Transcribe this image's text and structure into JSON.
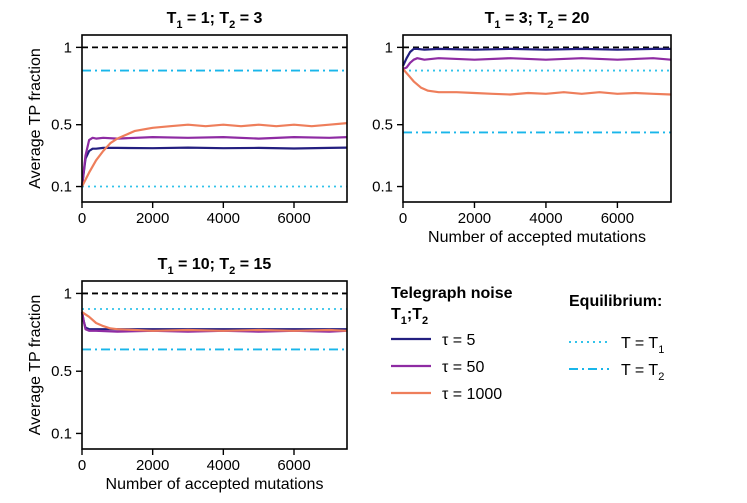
{
  "chart_data": {
    "type": "line",
    "colors": {
      "tau5": "#231f80",
      "tau50": "#8e2ba3",
      "tau1000": "#ee7e5b",
      "eqT1": "#32c3ea",
      "eqT2": "#19b6ea",
      "reference": "#000000"
    },
    "x_max": 7500,
    "ylim": [
      0,
      1.08
    ],
    "x_ticks": [
      0,
      2000,
      4000,
      6000
    ],
    "x_tick_labels": [
      "0",
      "2000",
      "4000",
      "6000"
    ],
    "y_ticks": [
      0.1,
      0.5,
      1
    ],
    "y_tick_labels": [
      "0.1",
      "0.5",
      "1"
    ],
    "panels": [
      {
        "title_parts": [
          "T",
          "1",
          " = 1; T",
          "2",
          " = 3"
        ],
        "ylabel": "Average TP fraction",
        "xlabel": "",
        "reference_line": 1.0,
        "eq_T1": 0.1,
        "eq_T2": 0.85,
        "series": [
          {
            "name": "τ = 5",
            "x": [
              0,
              100,
              200,
              300,
              400,
              600,
              1000,
              2000,
              3000,
              4000,
              5000,
              6000,
              7000,
              7500
            ],
            "values": [
              0.1,
              0.28,
              0.33,
              0.345,
              0.345,
              0.35,
              0.35,
              0.348,
              0.352,
              0.348,
              0.35,
              0.346,
              0.35,
              0.352
            ]
          },
          {
            "name": "τ = 50",
            "x": [
              0,
              100,
              200,
              300,
              400,
              600,
              1000,
              2000,
              3000,
              4000,
              5000,
              6000,
              7000,
              7500
            ],
            "values": [
              0.1,
              0.3,
              0.4,
              0.415,
              0.41,
              0.415,
              0.41,
              0.42,
              0.415,
              0.42,
              0.41,
              0.42,
              0.415,
              0.42
            ]
          },
          {
            "name": "τ = 1000",
            "x": [
              0,
              200,
              400,
              600,
              800,
              1000,
              1200,
              1500,
              2000,
              2500,
              3000,
              3500,
              4000,
              4500,
              5000,
              5500,
              6000,
              6500,
              7000,
              7500
            ],
            "values": [
              0.1,
              0.19,
              0.27,
              0.33,
              0.38,
              0.41,
              0.43,
              0.46,
              0.48,
              0.49,
              0.5,
              0.49,
              0.5,
              0.49,
              0.5,
              0.49,
              0.5,
              0.49,
              0.5,
              0.51
            ]
          }
        ]
      },
      {
        "title_parts": [
          "T",
          "1",
          " = 3; T",
          "2",
          " = 20"
        ],
        "ylabel": "",
        "xlabel": "Number of accepted mutations",
        "reference_line": 1.0,
        "eq_T1": 0.85,
        "eq_T2": 0.45,
        "series": [
          {
            "name": "τ = 5",
            "x": [
              0,
              100,
              200,
              300,
              400,
              600,
              1000,
              2000,
              3000,
              4000,
              5000,
              6000,
              7000,
              7500
            ],
            "values": [
              0.88,
              0.93,
              0.97,
              0.99,
              0.99,
              0.985,
              0.99,
              0.985,
              0.99,
              0.985,
              0.99,
              0.985,
              0.99,
              0.99
            ]
          },
          {
            "name": "τ = 50",
            "x": [
              0,
              100,
              200,
              300,
              400,
              600,
              1000,
              2000,
              3000,
              4000,
              5000,
              6000,
              7000,
              7500
            ],
            "values": [
              0.86,
              0.87,
              0.9,
              0.92,
              0.93,
              0.92,
              0.93,
              0.92,
              0.93,
              0.92,
              0.93,
              0.92,
              0.93,
              0.92
            ]
          },
          {
            "name": "τ = 1000",
            "x": [
              0,
              150,
              300,
              500,
              700,
              1000,
              1500,
              2000,
              2500,
              3000,
              3500,
              4000,
              4500,
              5000,
              5500,
              6000,
              6500,
              7000,
              7500
            ],
            "values": [
              0.86,
              0.82,
              0.78,
              0.74,
              0.72,
              0.71,
              0.71,
              0.705,
              0.7,
              0.695,
              0.705,
              0.7,
              0.71,
              0.7,
              0.71,
              0.7,
              0.705,
              0.7,
              0.695
            ]
          }
        ]
      },
      {
        "title_parts": [
          "T",
          "1",
          " = 10; T",
          "2",
          " = 15"
        ],
        "ylabel": "Average TP fraction",
        "xlabel": "Number of accepted mutations",
        "reference_line": 1.0,
        "eq_T1": 0.9,
        "eq_T2": 0.64,
        "series": [
          {
            "name": "τ = 5",
            "x": [
              0,
              50,
              100,
              200,
              400,
              1000,
              2000,
              3000,
              4000,
              5000,
              6000,
              7000,
              7500
            ],
            "values": [
              0.88,
              0.82,
              0.78,
              0.77,
              0.77,
              0.77,
              0.77,
              0.77,
              0.77,
              0.77,
              0.77,
              0.77,
              0.77
            ]
          },
          {
            "name": "τ = 50",
            "x": [
              0,
              50,
              100,
              200,
              400,
              1000,
              2000,
              3000,
              4000,
              5000,
              6000,
              7000,
              7500
            ],
            "values": [
              0.88,
              0.82,
              0.77,
              0.76,
              0.76,
              0.755,
              0.76,
              0.755,
              0.76,
              0.755,
              0.76,
              0.755,
              0.76
            ]
          },
          {
            "name": "τ = 1000",
            "x": [
              0,
              200,
              400,
              600,
              800,
              1000,
              1500,
              2000,
              3000,
              4000,
              5000,
              6000,
              7000,
              7500
            ],
            "values": [
              0.88,
              0.85,
              0.81,
              0.79,
              0.775,
              0.77,
              0.765,
              0.76,
              0.765,
              0.76,
              0.765,
              0.76,
              0.765,
              0.76
            ]
          }
        ]
      }
    ],
    "legend": {
      "noise_title_line1": "Telegraph noise",
      "noise_title_line2_parts": [
        "T",
        "1",
        ";T",
        "2"
      ],
      "noise_items": [
        "τ = 5",
        "τ = 50",
        "τ = 1000"
      ],
      "eq_title": "Equilibrium:",
      "eq_items": [
        {
          "label": "T = T",
          "sub": "1"
        },
        {
          "label": "T = T",
          "sub": "2"
        }
      ]
    }
  }
}
